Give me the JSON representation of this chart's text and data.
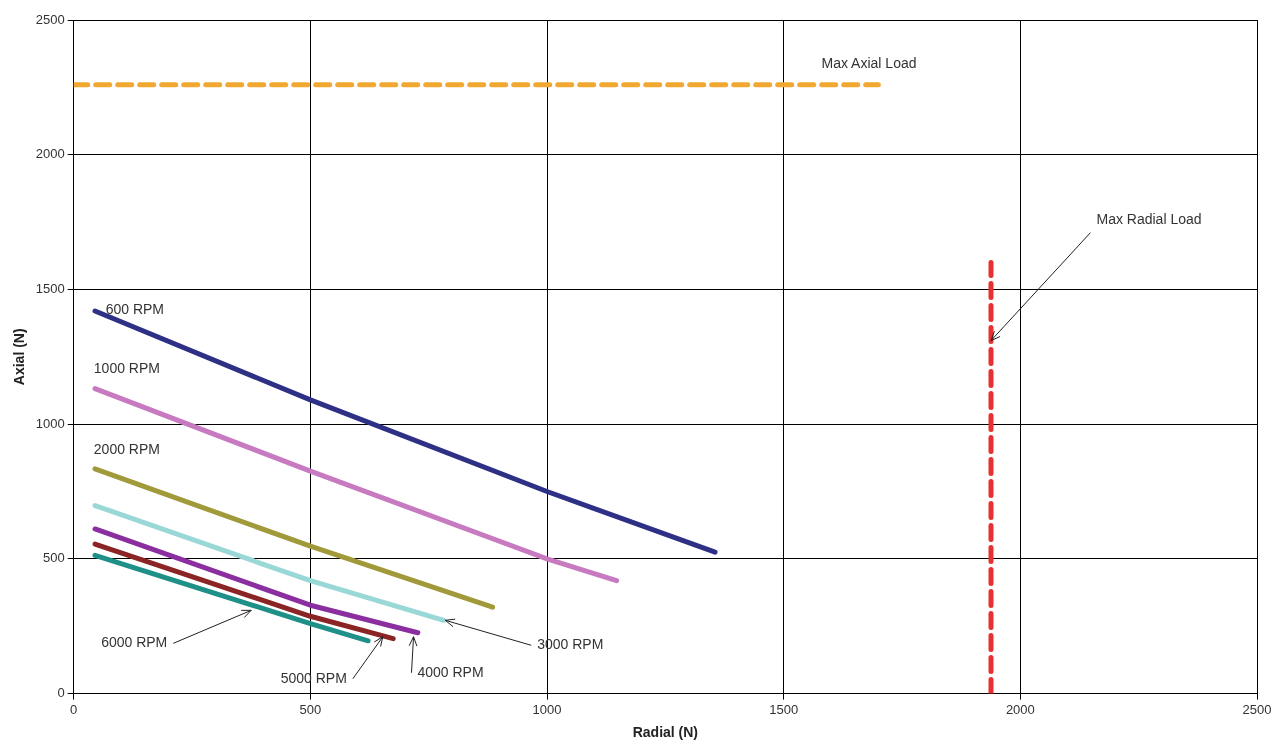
{
  "chart_data": {
    "type": "line",
    "xlabel": "Radial (N)",
    "ylabel": "Axial (N)",
    "xlim": [
      0,
      2500
    ],
    "xticks": [
      0,
      500,
      1000,
      1500,
      2000,
      2500
    ],
    "ylim": [
      0,
      2500
    ],
    "yticks": [
      0,
      500,
      1000,
      1500,
      2000,
      2500
    ],
    "grid": true,
    "legend": false,
    "marker": "none",
    "series": [
      {
        "color": "#2e3086",
        "x": [
          45,
          500,
          1000,
          1355
        ],
        "values": [
          1420,
          1090,
          750,
          525
        ]
      },
      {
        "color": "#c77ac0",
        "x": [
          45,
          500,
          1000,
          1147
        ],
        "values": [
          1132,
          826,
          500,
          419
        ]
      },
      {
        "color": "#a09a3a",
        "x": [
          45,
          500,
          885
        ],
        "values": [
          834,
          547,
          321
        ]
      },
      {
        "color": "#9ad8d8",
        "x": [
          45,
          500,
          782
        ],
        "values": [
          698,
          419,
          272
        ]
      },
      {
        "color": "#8b2fa0",
        "x": [
          45,
          500,
          727
        ],
        "values": [
          611,
          328,
          226
        ]
      },
      {
        "color": "#8b2525",
        "x": [
          45,
          500,
          675
        ],
        "values": [
          555,
          287,
          204
        ]
      },
      {
        "color": "#1f9088",
        "x": [
          45,
          500,
          622
        ],
        "values": [
          513,
          260,
          196
        ]
      },
      {
        "color": "#f0a830",
        "x": [
          0,
          1700
        ],
        "values": [
          2260,
          2260
        ],
        "line_style": "dashed"
      },
      {
        "color": "#e83030",
        "x": [
          1938,
          1938
        ],
        "values": [
          0,
          1600
        ],
        "line_style": "dashed"
      }
    ],
    "annotations": [
      "600 RPM",
      "1000 RPM",
      "2000 RPM",
      {
        "text": "3000 RPM",
        "x": 785,
        "y": 272
      },
      {
        "text": "4000 RPM",
        "x": 718,
        "y": 211
      },
      {
        "text": "5000 RPM",
        "x": 653,
        "y": 211
      },
      {
        "text": "6000 RPM",
        "x": 375,
        "y": 309
      },
      "Max Axial Load",
      {
        "text": "Max Radial Load",
        "x": 1938,
        "y": 1310
      }
    ]
  }
}
